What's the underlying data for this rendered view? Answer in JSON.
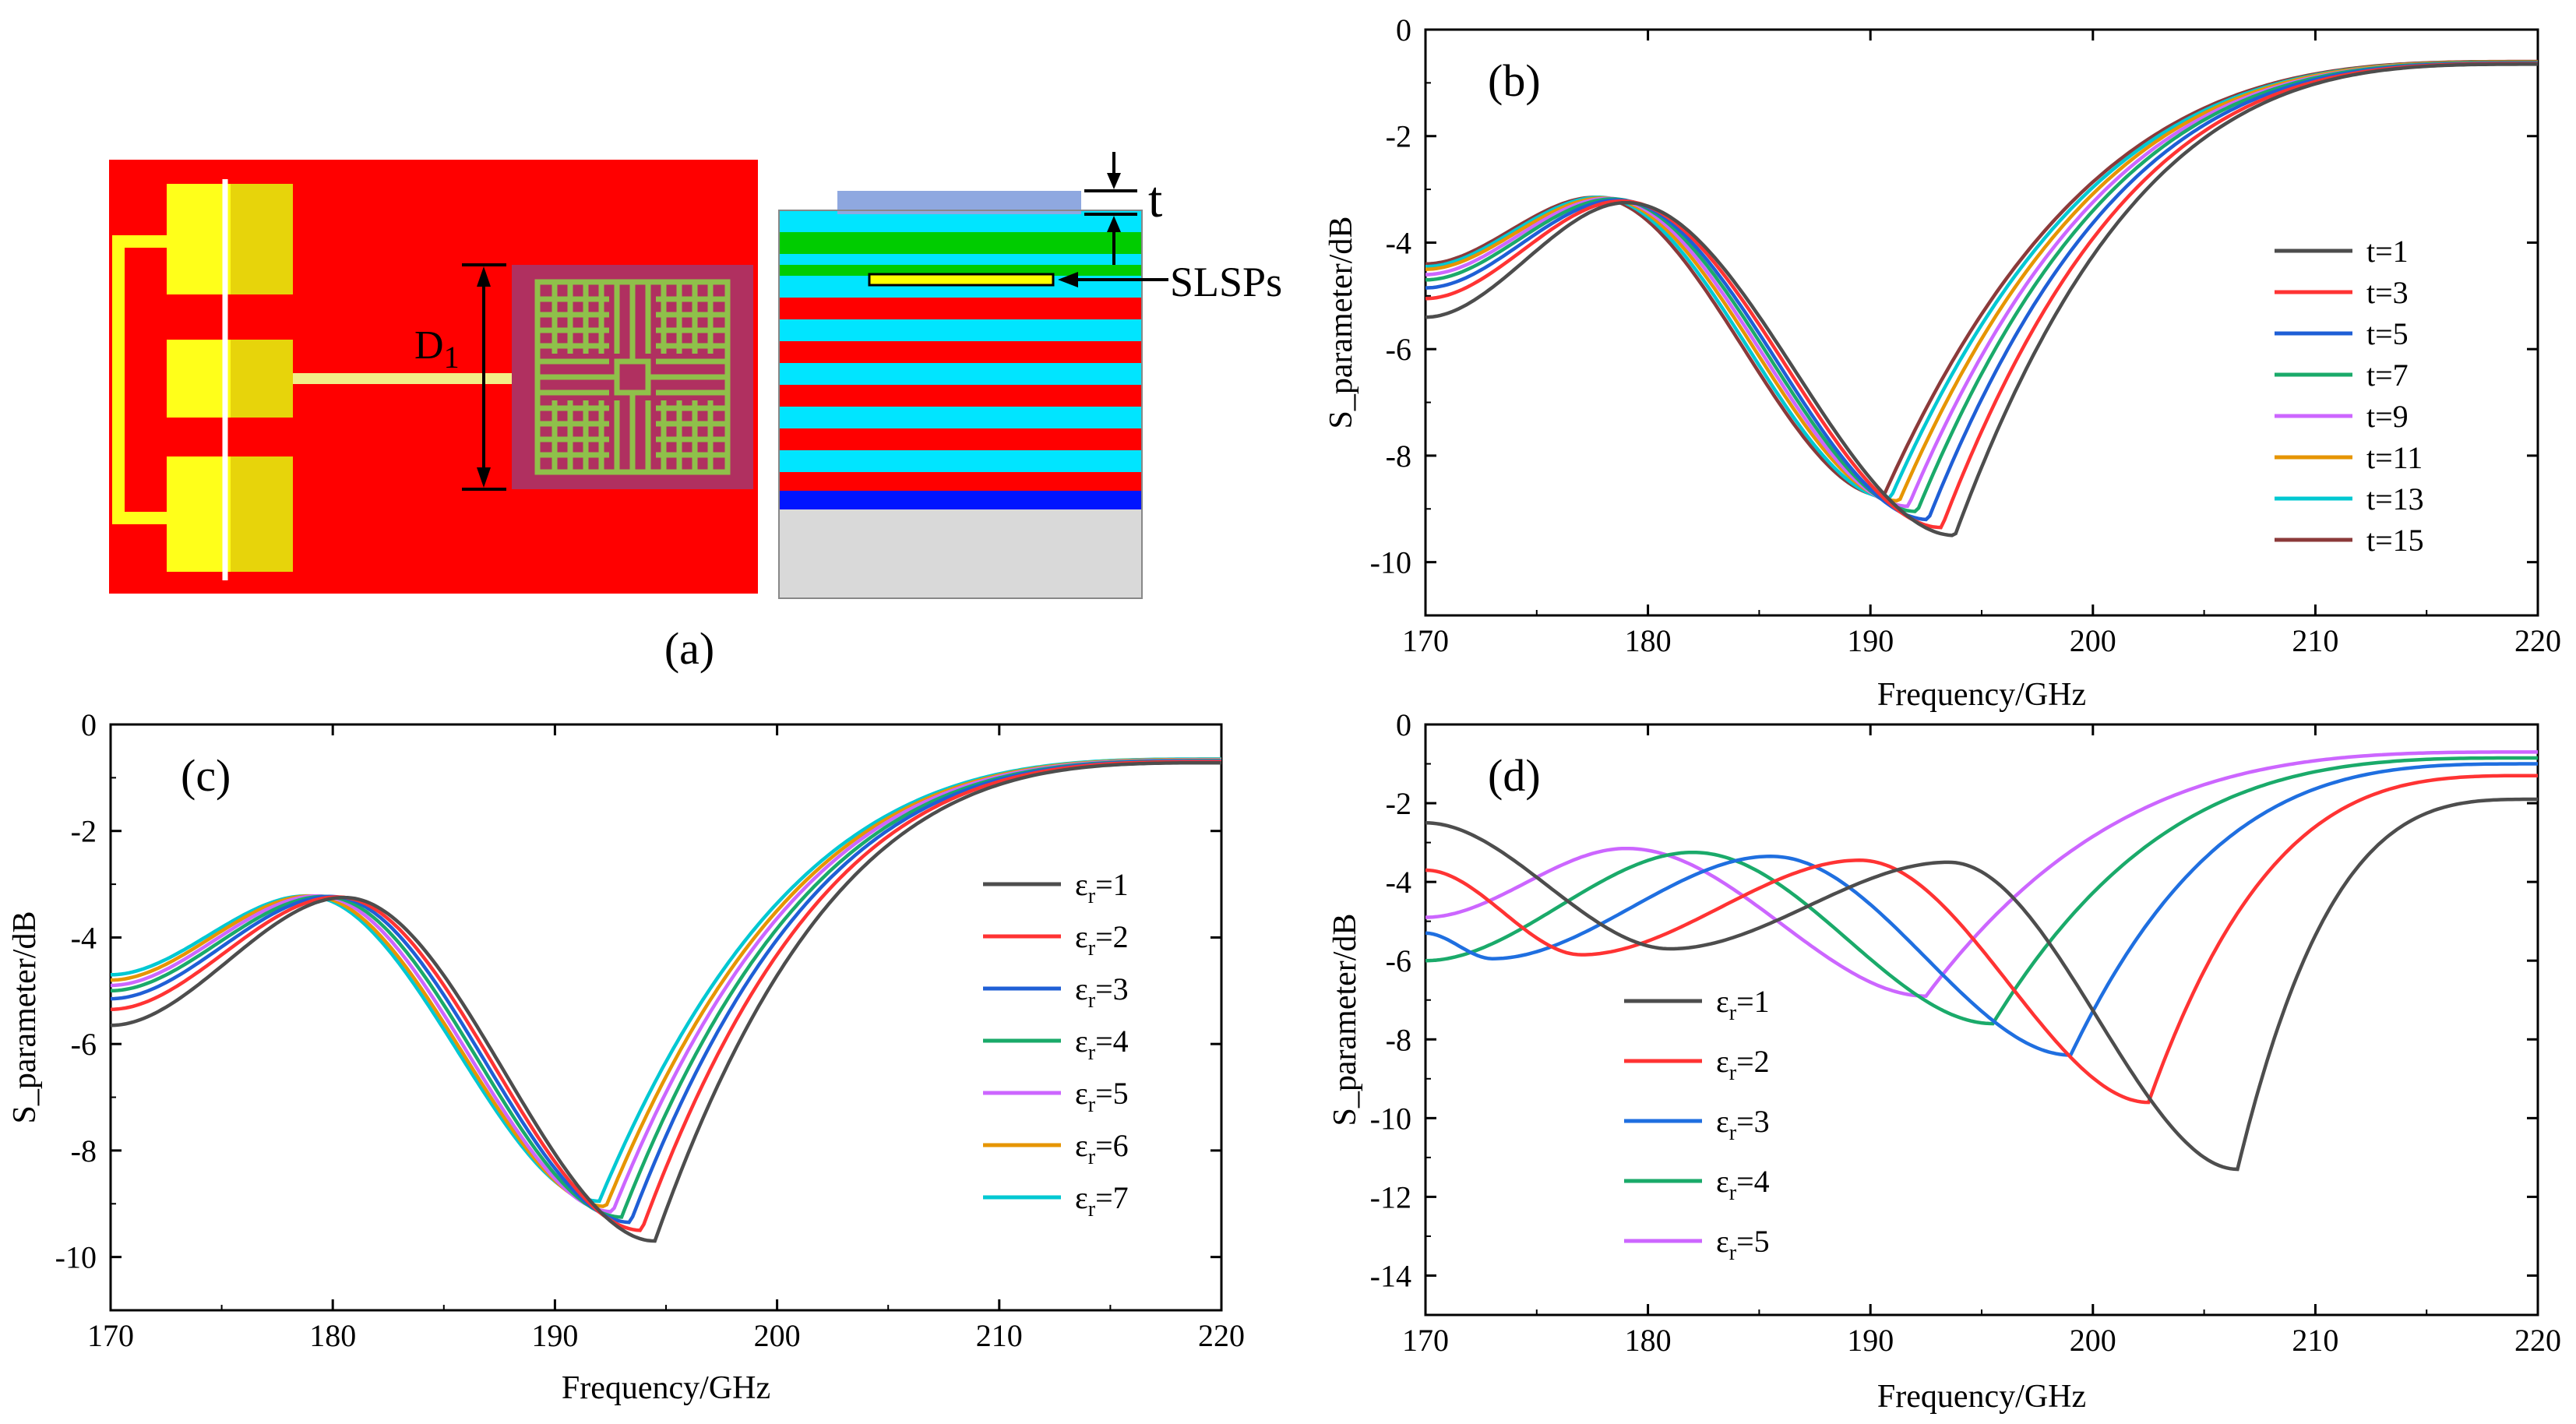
{
  "panel_a": {
    "label": "(a)",
    "dimension_label": "D",
    "dimension_sub": "1",
    "thickness_label": "t",
    "slsps_label": "SLSPs",
    "colors": {
      "background": "#ff0000",
      "electrode": "#ffff1a",
      "feed_line": "#f2ee88",
      "chip": "#b03060",
      "spiral": "#8fc04a",
      "top_layer": "#8fa8e0",
      "green_layer": "#00cc00",
      "cyan_layer": "#00e5ff",
      "red_layer": "#ff0000",
      "blue_layer": "#0014ff",
      "substrate": "#d9d9d9"
    }
  },
  "legend_prefix": "ε",
  "legend_sub": "r",
  "chart_data": [
    {
      "id": "b",
      "panel_label": "(b)",
      "type": "line",
      "xlabel": "Frequency/GHz",
      "ylabel": "S_parameter/dB",
      "xlim": [
        170,
        220
      ],
      "ylim": [
        -11,
        0
      ],
      "xticks": [
        170,
        180,
        190,
        200,
        210,
        220
      ],
      "yticks": [
        0,
        -2,
        -4,
        -6,
        -8,
        -10
      ],
      "legend_style": "t",
      "series": [
        {
          "name": "t=1",
          "color": "#4d4d4d",
          "dip_x": 193.8,
          "dip_y": -9.5,
          "peak_x": 179.0,
          "peak_y": -3.25,
          "y0": -5.4,
          "y_end": -0.65
        },
        {
          "name": "t=3",
          "color": "#ff3333",
          "dip_x": 193.2,
          "dip_y": -9.35,
          "peak_x": 178.8,
          "peak_y": -3.22,
          "y0": -5.05,
          "y_end": -0.64
        },
        {
          "name": "t=5",
          "color": "#1f5fd6",
          "dip_x": 192.6,
          "dip_y": -9.2,
          "peak_x": 178.6,
          "peak_y": -3.2,
          "y0": -4.85,
          "y_end": -0.63
        },
        {
          "name": "t=7",
          "color": "#1aaa6a",
          "dip_x": 192.1,
          "dip_y": -9.05,
          "peak_x": 178.4,
          "peak_y": -3.18,
          "y0": -4.7,
          "y_end": -0.62
        },
        {
          "name": "t=9",
          "color": "#cc66ff",
          "dip_x": 191.7,
          "dip_y": -8.95,
          "peak_x": 178.2,
          "peak_y": -3.17,
          "y0": -4.6,
          "y_end": -0.62
        },
        {
          "name": "t=11",
          "color": "#e69500",
          "dip_x": 191.3,
          "dip_y": -8.85,
          "peak_x": 178.0,
          "peak_y": -3.16,
          "y0": -4.5,
          "y_end": -0.61
        },
        {
          "name": "t=13",
          "color": "#00c8d2",
          "dip_x": 190.9,
          "dip_y": -8.8,
          "peak_x": 177.8,
          "peak_y": -3.15,
          "y0": -4.45,
          "y_end": -0.61
        },
        {
          "name": "t=15",
          "color": "#8b3a3a",
          "dip_x": 190.6,
          "dip_y": -8.75,
          "peak_x": 177.6,
          "peak_y": -3.15,
          "y0": -4.4,
          "y_end": -0.6
        }
      ]
    },
    {
      "id": "c",
      "panel_label": "(c)",
      "type": "line",
      "xlabel": "Frequency/GHz",
      "ylabel": "S_parameter/dB",
      "xlim": [
        170,
        220
      ],
      "ylim": [
        -11,
        0
      ],
      "xticks": [
        170,
        180,
        190,
        200,
        210,
        220
      ],
      "yticks": [
        0,
        -2,
        -4,
        -6,
        -8,
        -10
      ],
      "legend_style": "eps",
      "series": [
        {
          "name": "=1",
          "color": "#4d4d4d",
          "dip_x": 194.5,
          "dip_y": -9.7,
          "peak_x": 180.5,
          "peak_y": -3.25,
          "y0": -5.65,
          "y_end": -0.72
        },
        {
          "name": "=2",
          "color": "#ff3333",
          "dip_x": 193.9,
          "dip_y": -9.5,
          "peak_x": 180.2,
          "peak_y": -3.24,
          "y0": -5.35,
          "y_end": -0.7
        },
        {
          "name": "=3",
          "color": "#1f5fd6",
          "dip_x": 193.4,
          "dip_y": -9.35,
          "peak_x": 179.9,
          "peak_y": -3.23,
          "y0": -5.15,
          "y_end": -0.69
        },
        {
          "name": "=4",
          "color": "#1aaa6a",
          "dip_x": 193.0,
          "dip_y": -9.25,
          "peak_x": 179.6,
          "peak_y": -3.23,
          "y0": -5.0,
          "y_end": -0.68
        },
        {
          "name": "=5",
          "color": "#cc66ff",
          "dip_x": 192.6,
          "dip_y": -9.15,
          "peak_x": 179.3,
          "peak_y": -3.22,
          "y0": -4.9,
          "y_end": -0.67
        },
        {
          "name": "=6",
          "color": "#e69500",
          "dip_x": 192.3,
          "dip_y": -9.05,
          "peak_x": 179.0,
          "peak_y": -3.22,
          "y0": -4.8,
          "y_end": -0.66
        },
        {
          "name": "=7",
          "color": "#00c8d2",
          "dip_x": 192.0,
          "dip_y": -8.95,
          "peak_x": 178.8,
          "peak_y": -3.22,
          "y0": -4.7,
          "y_end": -0.65
        }
      ]
    },
    {
      "id": "d",
      "panel_label": "(d)",
      "type": "line",
      "xlabel": "Frequency/GHz",
      "ylabel": "S_parameter/dB",
      "xlim": [
        170,
        220
      ],
      "ylim": [
        -15,
        0
      ],
      "xticks": [
        170,
        180,
        190,
        200,
        210,
        220
      ],
      "yticks": [
        0,
        -2,
        -4,
        -6,
        -8,
        -10,
        -12,
        -14
      ],
      "legend_style": "eps",
      "series": [
        {
          "name": "=1",
          "color": "#4d4d4d",
          "dip1_x": 181.0,
          "dip1_y": -5.7,
          "peak_x": 193.5,
          "peak_y": -3.5,
          "dip2_x": 206.5,
          "dip2_y": -11.3,
          "y0": -2.5,
          "y_end": -1.9
        },
        {
          "name": "=2",
          "color": "#ff3333",
          "dip1_x": 177.0,
          "dip1_y": -5.85,
          "peak_x": 189.5,
          "peak_y": -3.45,
          "dip2_x": 202.5,
          "dip2_y": -9.6,
          "y0": -3.7,
          "y_end": -1.3
        },
        {
          "name": "=3",
          "color": "#1f6fe0",
          "dip1_x": 173.0,
          "dip1_y": -5.95,
          "peak_x": 185.5,
          "peak_y": -3.35,
          "dip2_x": 199.0,
          "dip2_y": -8.4,
          "y0": -5.3,
          "y_end": -1.0
        },
        {
          "name": "=4",
          "color": "#1aaa6a",
          "peak_x": 182.0,
          "peak_y": -3.25,
          "dip2_x": 195.5,
          "dip2_y": -7.6,
          "y0": -6.0,
          "y_end": -0.85
        },
        {
          "name": "=5",
          "color": "#cc66ff",
          "peak_x": 179.0,
          "peak_y": -3.15,
          "dip2_x": 192.5,
          "dip2_y": -6.9,
          "y0": -4.9,
          "y_end": -0.7
        }
      ]
    }
  ]
}
